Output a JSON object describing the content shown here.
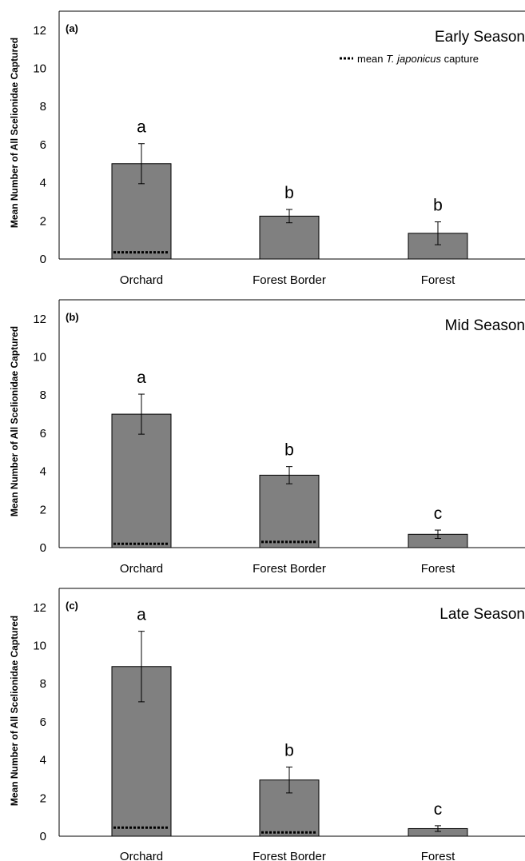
{
  "chart_data": [
    {
      "type": "bar",
      "panel_label": "(a)",
      "title": "Early Season",
      "ylabel": "Mean Number of  All Scelionidae Captured",
      "xlabel": "",
      "categories": [
        "Orchard",
        "Forest Border",
        "Forest"
      ],
      "values": [
        5.0,
        2.25,
        1.35
      ],
      "error": [
        1.05,
        0.35,
        0.6
      ],
      "significance": [
        "a",
        "b",
        "b"
      ],
      "tjaponicus_mean": [
        0.35,
        null,
        null
      ],
      "ylim": [
        0,
        13
      ],
      "yticks": [
        "0",
        "2",
        "4",
        "6",
        "8",
        "10",
        "12"
      ],
      "legend": {
        "prefix": "mean ",
        "italic": "T. japonicus",
        "suffix": " capture",
        "position": "top-right"
      }
    },
    {
      "type": "bar",
      "panel_label": "(b)",
      "title": "Mid Season",
      "ylabel": "Mean Number of  All Scelionidae Captured",
      "xlabel": "",
      "categories": [
        "Orchard",
        "Forest Border",
        "Forest"
      ],
      "values": [
        7.0,
        3.8,
        0.7
      ],
      "error": [
        1.05,
        0.45,
        0.22
      ],
      "significance": [
        "a",
        "b",
        "c"
      ],
      "tjaponicus_mean": [
        0.2,
        0.3,
        null
      ],
      "ylim": [
        0,
        13
      ],
      "yticks": [
        "0",
        "2",
        "4",
        "6",
        "8",
        "10",
        "12"
      ]
    },
    {
      "type": "bar",
      "panel_label": "(c)",
      "title": "Late Season",
      "ylabel": "Mean Number of  All Scelionidae Captured",
      "xlabel": "",
      "categories": [
        "Orchard",
        "Forest Border",
        "Forest"
      ],
      "values": [
        8.9,
        2.95,
        0.4
      ],
      "error": [
        1.85,
        0.68,
        0.15
      ],
      "significance": [
        "a",
        "b",
        "c"
      ],
      "tjaponicus_mean": [
        0.45,
        0.2,
        null
      ],
      "ylim": [
        0,
        13
      ],
      "yticks": [
        "0",
        "2",
        "4",
        "6",
        "8",
        "10",
        "12"
      ]
    }
  ],
  "colors": {
    "bar_fill": "#808080",
    "bar_stroke": "#000000",
    "axis": "#000000",
    "text": "#000000"
  }
}
